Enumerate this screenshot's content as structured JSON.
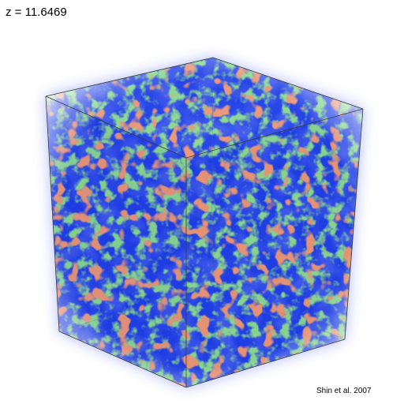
{
  "header": {
    "redshift_label": "z = 11.6469"
  },
  "footer": {
    "credit": "Shin et al. 2007"
  },
  "visualization": {
    "subject": "volume-rendered simulation cube",
    "palette": {
      "background": "#ffffff",
      "low_density": "#1a3cf0",
      "mid_density": "#3fae4a",
      "high_density": "#d2452a",
      "edge_lines": "#3a3a3a"
    }
  }
}
